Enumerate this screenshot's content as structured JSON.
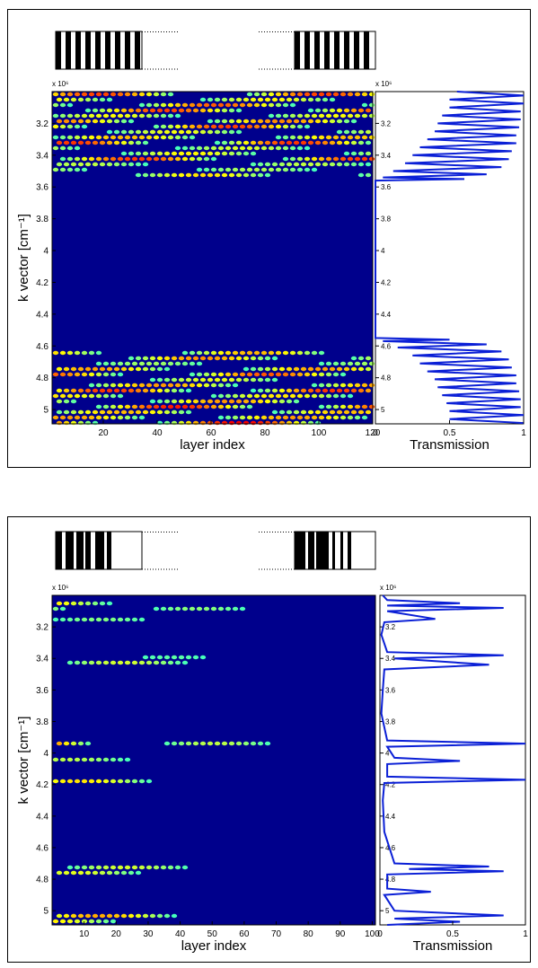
{
  "chart_data": [
    {
      "type": "heatmap",
      "multiplier": "x 10⁶",
      "xlabel": "layer index",
      "ylabel": "k vector [cm⁻¹]",
      "xlim": [
        1,
        120
      ],
      "xticks": [
        20,
        40,
        60,
        80,
        100,
        120
      ],
      "ylim": [
        3.0,
        5.09
      ],
      "yticks": [
        3.2,
        3.4,
        3.6,
        3.8,
        4,
        4.2,
        4.4,
        4.6,
        4.8,
        5
      ]
    },
    {
      "type": "line",
      "multiplier": "x 10⁶",
      "xlabel": "Transmission",
      "xlim": [
        0,
        1
      ],
      "xticks": [
        0,
        0.5,
        1
      ],
      "ylim": [
        3.0,
        5.09
      ],
      "yticks": [
        3.2,
        3.4,
        3.6,
        3.8,
        4,
        4.2,
        4.4,
        4.6,
        4.8,
        5
      ],
      "series": [
        {
          "color": "#0a1fd6",
          "x": [
            3.0,
            3.025,
            3.05,
            3.075,
            3.1,
            3.125,
            3.15,
            3.175,
            3.2,
            3.225,
            3.25,
            3.275,
            3.3,
            3.325,
            3.35,
            3.375,
            3.4,
            3.425,
            3.45,
            3.475,
            3.5,
            3.52,
            3.54,
            3.55,
            3.56,
            4.55,
            4.56,
            4.57,
            4.59,
            4.61,
            4.635,
            4.66,
            4.685,
            4.71,
            4.735,
            4.76,
            4.785,
            4.81,
            4.835,
            4.86,
            4.885,
            4.91,
            4.935,
            4.96,
            4.985,
            5.01,
            5.035,
            5.06,
            5.085
          ],
          "values": [
            0.55,
            1,
            0.5,
            1,
            0.5,
            0.98,
            0.45,
            0.98,
            0.42,
            0.97,
            0.4,
            0.95,
            0.35,
            0.95,
            0.3,
            0.92,
            0.25,
            0.9,
            0.2,
            0.85,
            0.12,
            0.75,
            0.05,
            0.6,
            0,
            0,
            0.5,
            0.05,
            0.75,
            0.15,
            0.85,
            0.25,
            0.9,
            0.3,
            0.92,
            0.35,
            0.95,
            0.4,
            0.95,
            0.42,
            0.97,
            0.45,
            0.98,
            0.48,
            0.98,
            0.5,
            1,
            0.5,
            1
          ]
        }
      ]
    },
    {
      "type": "heatmap",
      "multiplier": "x 10⁶",
      "xlabel": "layer index",
      "ylabel": "k vector [cm⁻¹]",
      "xlim": [
        0,
        101
      ],
      "xticks": [
        10,
        20,
        30,
        40,
        50,
        60,
        70,
        80,
        90,
        100
      ],
      "ylim": [
        3.0,
        5.09
      ],
      "yticks": [
        3.2,
        3.4,
        3.6,
        3.8,
        4,
        4.2,
        4.4,
        4.6,
        4.8,
        5
      ]
    },
    {
      "type": "line",
      "multiplier": "x 10⁶",
      "xlabel": "Transmission",
      "xlim": [
        0,
        1
      ],
      "xticks": [
        0,
        0.5,
        1
      ],
      "ylim": [
        3.0,
        5.09
      ],
      "yticks": [
        3.2,
        3.4,
        3.6,
        3.8,
        4,
        4.2,
        4.4,
        4.6,
        4.8,
        5
      ],
      "series": [
        {
          "color": "#0a1fd6",
          "x": [
            3.0,
            3.03,
            3.05,
            3.065,
            3.08,
            3.1,
            3.15,
            3.17,
            3.25,
            3.36,
            3.38,
            3.4,
            3.44,
            3.47,
            3.6,
            3.75,
            3.92,
            3.94,
            3.96,
            4.03,
            4.05,
            4.07,
            4.15,
            4.17,
            4.19,
            4.3,
            4.5,
            4.7,
            4.72,
            4.735,
            4.75,
            4.77,
            4.86,
            4.88,
            4.9,
            5.0,
            5.03,
            5.05,
            5.07,
            5.09
          ],
          "values": [
            0.02,
            0.05,
            0.55,
            0.05,
            0.85,
            0.05,
            0.38,
            0.03,
            0.01,
            0.05,
            0.85,
            0.1,
            0.75,
            0.03,
            0.02,
            0.01,
            0.05,
            1,
            0.05,
            0.1,
            0.55,
            0.05,
            0.05,
            1,
            0.03,
            0.02,
            0.03,
            0.1,
            0.75,
            0.2,
            0.85,
            0.05,
            0.05,
            0.35,
            0.03,
            0.1,
            0.85,
            0.1,
            0.55,
            0.05
          ]
        }
      ]
    }
  ]
}
